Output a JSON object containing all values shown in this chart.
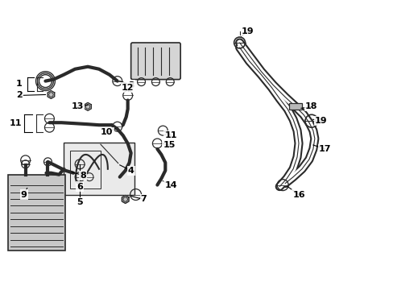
{
  "bg_color": "#ffffff",
  "line_color": "#2a2a2a",
  "label_color": "#000000",
  "fill_color": "#d0d0d0",
  "light_fill": "#e8e8e8",
  "figsize": [
    4.89,
    3.6
  ],
  "dpi": 100
}
